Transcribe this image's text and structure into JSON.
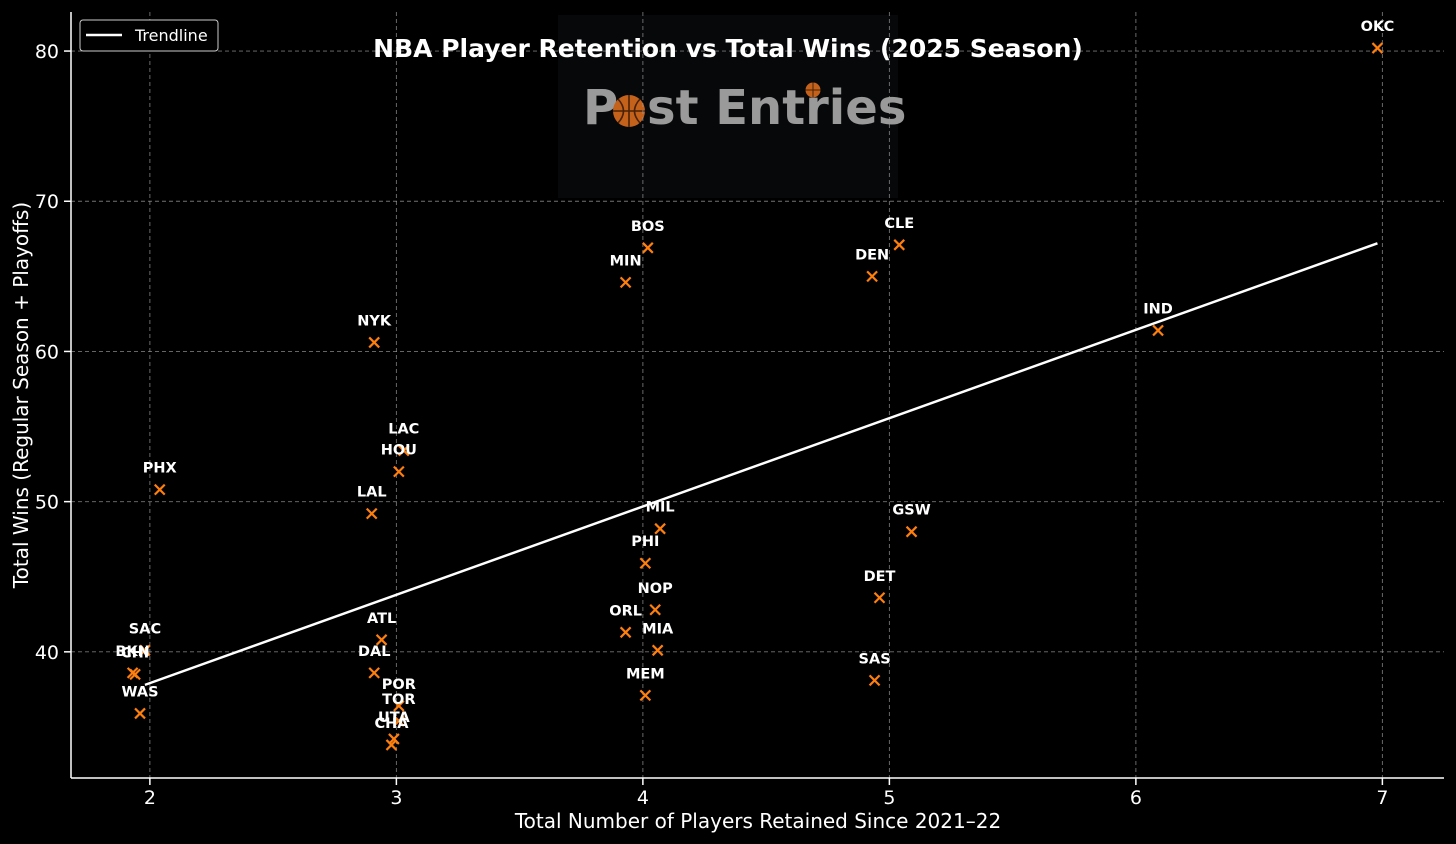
{
  "colors": {
    "background": "#000000",
    "marker": "#ff7f0e",
    "trendline": "#ffffff",
    "text": "#ffffff",
    "grid": "#9a9a9a",
    "logo_text": "#9a9a9a",
    "logo_ball": "#c4621b"
  },
  "logo": {
    "text_before": "P",
    "text_after": "st Entries"
  },
  "chart_data": {
    "type": "scatter",
    "title": "NBA Player Retention vs Total Wins (2025 Season)",
    "xlabel": "Total Number of Players Retained Since 2021–22",
    "ylabel": "Total Wins (Regular Season + Playoffs)",
    "xlim": [
      1.68,
      7.25
    ],
    "ylim": [
      31.6,
      82.6
    ],
    "xticks": [
      2,
      3,
      4,
      5,
      6,
      7
    ],
    "yticks": [
      40,
      50,
      60,
      70,
      80
    ],
    "grid": true,
    "legend": {
      "position": "top-left",
      "entries": [
        "Trendline"
      ]
    },
    "trendline": {
      "x": [
        1.98,
        6.98
      ],
      "y": [
        37.8,
        67.2
      ]
    },
    "points": [
      {
        "team": "OKC",
        "x": 6.98,
        "y": 80.2
      },
      {
        "team": "BOS",
        "x": 4.02,
        "y": 66.9
      },
      {
        "team": "CLE",
        "x": 5.04,
        "y": 67.1
      },
      {
        "team": "MIN",
        "x": 3.93,
        "y": 64.6
      },
      {
        "team": "DEN",
        "x": 4.93,
        "y": 65.0
      },
      {
        "team": "IND",
        "x": 6.09,
        "y": 61.4
      },
      {
        "team": "NYK",
        "x": 2.91,
        "y": 60.6
      },
      {
        "team": "LAC",
        "x": 3.03,
        "y": 53.4
      },
      {
        "team": "HOU",
        "x": 3.01,
        "y": 52.0
      },
      {
        "team": "PHX",
        "x": 2.04,
        "y": 50.8
      },
      {
        "team": "LAL",
        "x": 2.9,
        "y": 49.2
      },
      {
        "team": "MIL",
        "x": 4.07,
        "y": 48.2
      },
      {
        "team": "GSW",
        "x": 5.09,
        "y": 48.0
      },
      {
        "team": "PHI",
        "x": 4.01,
        "y": 45.9
      },
      {
        "team": "DET",
        "x": 4.96,
        "y": 43.6
      },
      {
        "team": "NOP",
        "x": 4.05,
        "y": 42.8
      },
      {
        "team": "ORL",
        "x": 3.93,
        "y": 41.3
      },
      {
        "team": "ATL",
        "x": 2.94,
        "y": 40.8
      },
      {
        "team": "SAC",
        "x": 1.98,
        "y": 40.1
      },
      {
        "team": "MIA",
        "x": 4.06,
        "y": 40.1
      },
      {
        "team": "BKN",
        "x": 1.93,
        "y": 38.6
      },
      {
        "team": "CHI",
        "x": 1.94,
        "y": 38.5
      },
      {
        "team": "DAL",
        "x": 2.91,
        "y": 38.6
      },
      {
        "team": "SAS",
        "x": 4.94,
        "y": 38.1
      },
      {
        "team": "MEM",
        "x": 4.01,
        "y": 37.1
      },
      {
        "team": "POR",
        "x": 3.01,
        "y": 36.4
      },
      {
        "team": "WAS",
        "x": 1.96,
        "y": 35.9
      },
      {
        "team": "TOR",
        "x": 3.01,
        "y": 35.4
      },
      {
        "team": "UTA",
        "x": 2.99,
        "y": 34.2
      },
      {
        "team": "CHA",
        "x": 2.98,
        "y": 33.8
      }
    ]
  }
}
